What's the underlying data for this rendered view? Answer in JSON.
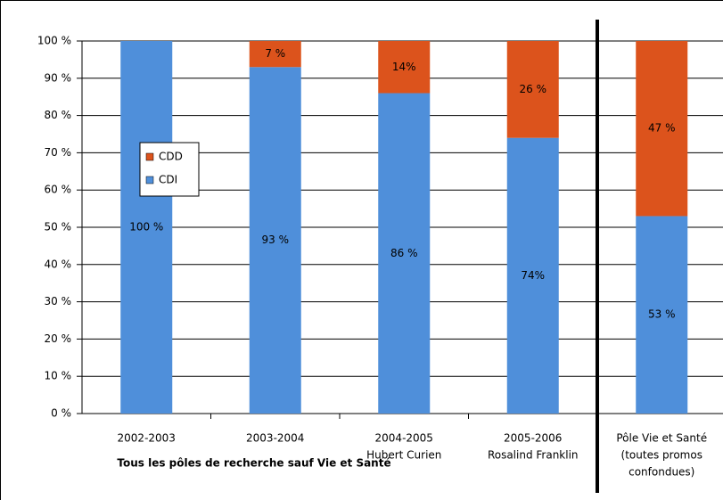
{
  "chart_data": {
    "type": "stacked_bar",
    "categories": [
      [
        "2002-2003"
      ],
      [
        "2003-2004"
      ],
      [
        "2004-2005",
        "Hubert Curien"
      ],
      [
        "2005-2006",
        "Rosalind Franklin"
      ],
      [
        "Pôle Vie et Santé",
        "(toutes promos",
        "confondues)"
      ]
    ],
    "series": [
      {
        "name": "CDI",
        "color": "#4f8fda",
        "values": [
          100,
          93,
          86,
          74,
          53
        ],
        "value_labels": [
          "100 %",
          "93 %",
          "86 %",
          "74%",
          "53 %"
        ]
      },
      {
        "name": "CDD",
        "color": "#dc531c",
        "values": [
          0,
          7,
          14,
          26,
          47
        ],
        "value_labels": [
          null,
          "7 %",
          "14%",
          "26 %",
          "47 %"
        ]
      }
    ],
    "ylim": [
      0,
      100
    ],
    "yticks": [
      {
        "value": 0,
        "label": "0 %"
      },
      {
        "value": 10,
        "label": "10 %"
      },
      {
        "value": 20,
        "label": "20 %"
      },
      {
        "value": 30,
        "label": "30 %"
      },
      {
        "value": 40,
        "label": "40 %"
      },
      {
        "value": 50,
        "label": "50 %"
      },
      {
        "value": 60,
        "label": "60 %"
      },
      {
        "value": 70,
        "label": "70 %"
      },
      {
        "value": 80,
        "label": "80 %"
      },
      {
        "value": 90,
        "label": "90 %"
      },
      {
        "value": 100,
        "label": "100 %"
      }
    ],
    "grid": true,
    "annotations": [
      "Tous les pôles de recherche sauf Vie et Santé"
    ]
  }
}
